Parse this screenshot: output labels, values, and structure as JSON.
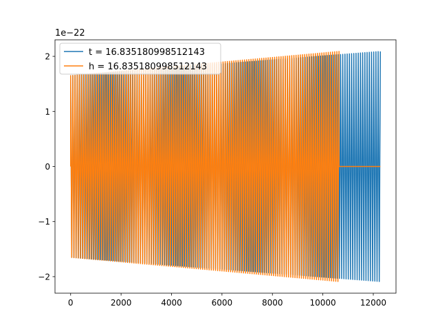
{
  "chart_data": {
    "type": "line",
    "title": "",
    "xlabel": "",
    "ylabel": "",
    "xlim": [
      -620,
      12900
    ],
    "ylim": [
      -2.3,
      2.3
    ],
    "x_ticks": [
      0,
      2000,
      4000,
      6000,
      8000,
      10000,
      12000
    ],
    "x_tick_labels": [
      "0",
      "2000",
      "4000",
      "6000",
      "8000",
      "10000",
      "12000"
    ],
    "y_ticks": [
      -2,
      -1,
      0,
      1,
      2
    ],
    "y_tick_labels": [
      "−2",
      "−1",
      "0",
      "1",
      "2"
    ],
    "y_offset_label": "1e−22",
    "grid": false,
    "legend_position": "upper-left",
    "series": [
      {
        "name": "t = 16.835180998512143",
        "color": "#1f77b4",
        "x_start": 0,
        "x_end": 12280,
        "amplitude_start": 1.65,
        "amplitude_end": 2.09,
        "cycles": 140
      },
      {
        "name": "h = 16.835180998512143",
        "color": "#ff7f0e",
        "x_start": 0,
        "x_end": 10640,
        "amplitude_start": 1.65,
        "amplitude_end": 2.09,
        "cycles": 125,
        "flat_after_x": 10640,
        "flat_until_x": 12280,
        "flat_value": 0
      }
    ]
  }
}
